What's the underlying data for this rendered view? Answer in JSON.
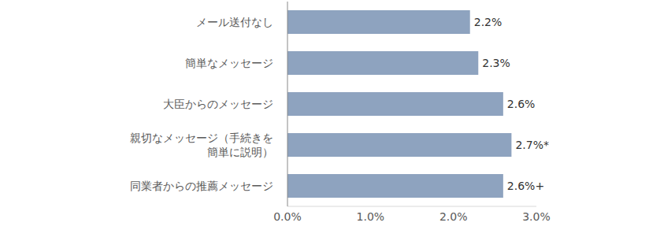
{
  "chart_data": {
    "type": "bar",
    "orientation": "horizontal",
    "categories": [
      "メール送付なし",
      "簡単なメッセージ",
      "大臣からのメッセージ",
      "親切なメッセージ（手続きを\n簡単に説明）",
      "同業者からの推薦メッセージ"
    ],
    "values": [
      2.2,
      2.3,
      2.6,
      2.7,
      2.6
    ],
    "value_labels": [
      "2.2%",
      "2.3%",
      "2.6%",
      "2.7%*",
      "2.6%+"
    ],
    "data_labels": true,
    "color": "#8ea3bf",
    "xlim": [
      0,
      3
    ],
    "xticks": [
      {
        "value": 0,
        "label": "0.0%"
      },
      {
        "value": 1,
        "label": "1.0%"
      },
      {
        "value": 2,
        "label": "2.0%"
      },
      {
        "value": 3,
        "label": "3.0%"
      }
    ],
    "grid": false
  }
}
